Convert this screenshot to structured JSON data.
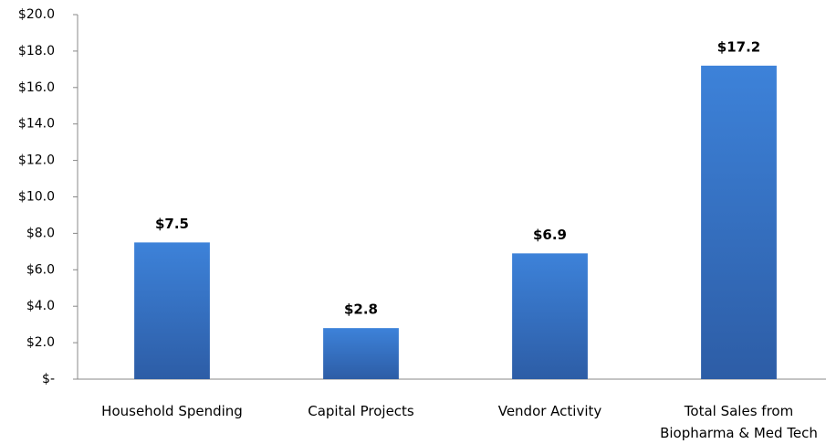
{
  "chart_data": {
    "type": "bar",
    "categories": [
      "Household Spending",
      "Capital Projects",
      "Vendor Activity",
      "Total Sales from Biopharma & Med Tech"
    ],
    "values": [
      7.5,
      2.8,
      6.9,
      17.2
    ],
    "value_labels": [
      "$7.5",
      "$2.8",
      "$6.9",
      "$17.2"
    ],
    "color": "#3a78c9",
    "ylim": [
      0,
      20
    ],
    "yticks": [
      {
        "value": 0,
        "label": "$-"
      },
      {
        "value": 2,
        "label": "$2.0"
      },
      {
        "value": 4,
        "label": "$4.0"
      },
      {
        "value": 6,
        "label": "$6.0"
      },
      {
        "value": 8,
        "label": "$8.0"
      },
      {
        "value": 10,
        "label": "$10.0"
      },
      {
        "value": 12,
        "label": "$12.0"
      },
      {
        "value": 14,
        "label": "$14.0"
      },
      {
        "value": 16,
        "label": "$16.0"
      },
      {
        "value": 18,
        "label": "$18.0"
      },
      {
        "value": 20,
        "label": "$20.0"
      }
    ],
    "grid": false
  }
}
